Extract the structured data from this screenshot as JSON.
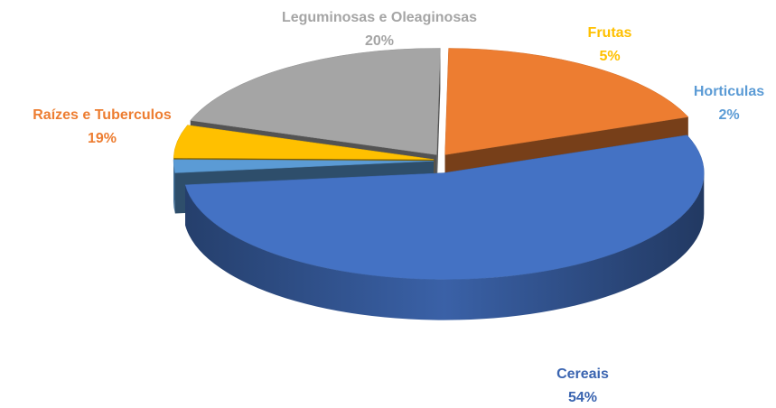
{
  "chart_data": {
    "type": "pie",
    "categories": [
      "Cereais",
      "Horticulas",
      "Frutas",
      "Leguminosas e Oleaginosas",
      "Raízes e Tuberculos"
    ],
    "values": [
      54,
      2,
      5,
      20,
      19
    ],
    "value_labels": [
      "54%",
      "2%",
      "5%",
      "20%",
      "19%"
    ],
    "colors": [
      "#4472c4",
      "#5b9bd5",
      "#ffc000",
      "#a5a5a5",
      "#ed7d31"
    ]
  }
}
